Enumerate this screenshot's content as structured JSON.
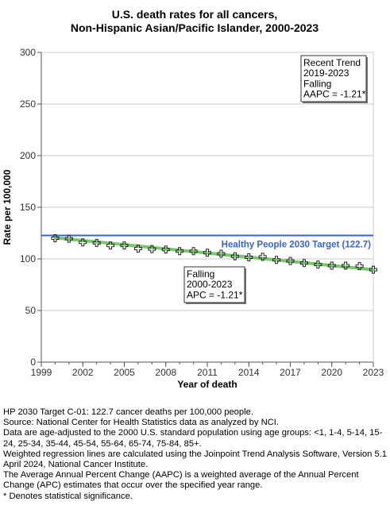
{
  "chart_data": {
    "type": "line",
    "title_lines": [
      "U.S. death rates for all cancers,",
      "Non-Hispanic Asian/Pacific Islander,  2000-2023"
    ],
    "xlabel": "Year of death",
    "ylabel": "Rate per 100,000",
    "xlim": [
      1999,
      2023
    ],
    "ylim": [
      0,
      300
    ],
    "xticks": [
      1999,
      2002,
      2005,
      2008,
      2011,
      2014,
      2017,
      2020,
      2023
    ],
    "yticks": [
      0,
      50,
      100,
      150,
      200,
      250,
      300
    ],
    "grid": true,
    "series": [
      {
        "marker": "cross",
        "x": [
          2000,
          2001,
          2002,
          2003,
          2004,
          2005,
          2006,
          2007,
          2008,
          2009,
          2010,
          2011,
          2012,
          2013,
          2014,
          2015,
          2016,
          2017,
          2018,
          2019,
          2020,
          2021,
          2022,
          2023
        ],
        "y": [
          120.0,
          119.5,
          116.0,
          115.5,
          113.0,
          113.0,
          110.0,
          109.5,
          109.0,
          107.5,
          107.5,
          106.0,
          105.0,
          102.5,
          101.5,
          102.0,
          99.0,
          98.0,
          96.0,
          94.5,
          93.5,
          93.5,
          93.0,
          89.5
        ]
      },
      {
        "kind": "trend",
        "color": "#77c96a",
        "x": [
          2000,
          2023
        ],
        "y": [
          120.5,
          89.5
        ]
      }
    ],
    "target": {
      "value": 122.7,
      "label": "Healthy People 2030 Target (122.7)",
      "color": "#3366dd"
    },
    "annotations": [
      {
        "lines": [
          "Recent Trend",
          "2019-2023",
          "Falling",
          "AAPC = -1.21*"
        ]
      },
      {
        "lines": [
          "Falling",
          "2000-2023",
          "APC = -1.21*"
        ]
      }
    ]
  },
  "footnotes": [
    "HP 2030 Target C-01: 122.7 cancer deaths per 100,000 people.",
    "Source: National Center for Health Statistics data as analyzed by NCI.",
    "Data are age-adjusted to the 2000 U.S. standard population using age groups: <1, 1-4, 5-14, 15-24, 25-34, 35-44, 45-54, 55-64, 65-74, 75-84, 85+.",
    "Weighted regression lines are calculated using the Joinpoint Trend Analysis Software, Version 5.1 April 2024, National Cancer Institute.",
    "The Average Annual Percent Change (AAPC) is a weighted average of the Annual Percent Change (APC) estimates that occur over the specified year range.",
    "* Denotes statistical significance."
  ]
}
